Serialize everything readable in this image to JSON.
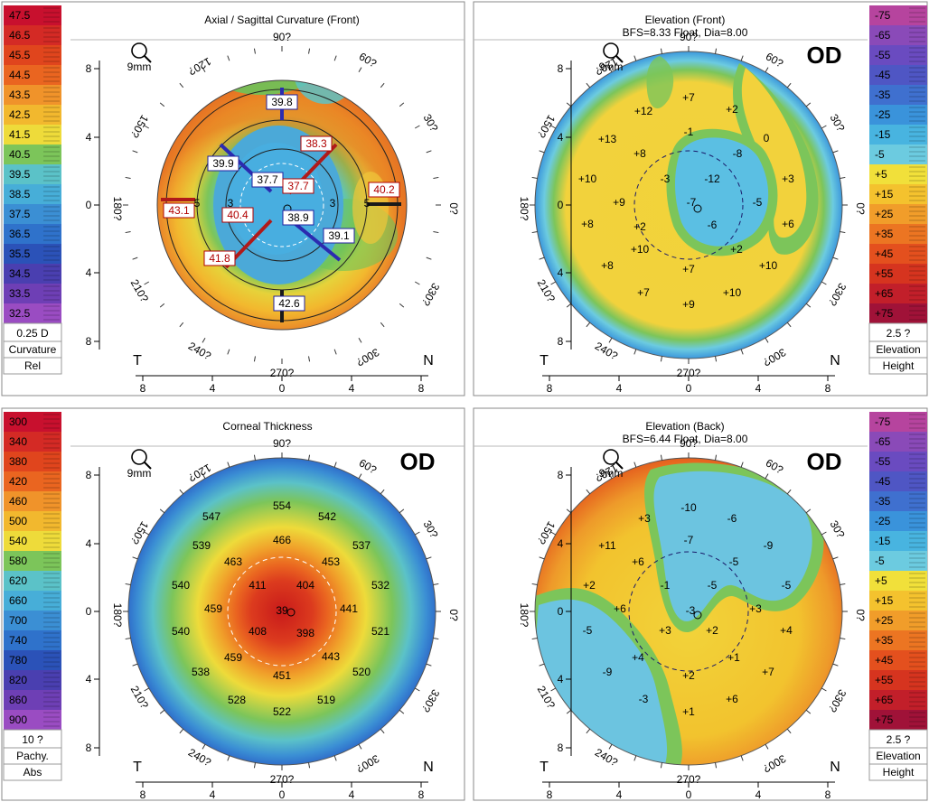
{
  "panels": [
    {
      "id": "axial",
      "title": "Axial / Sagittal Curvature (Front)",
      "subtitle": "",
      "od": "",
      "zoom_label": "9mm",
      "legend_side": "left",
      "legend": {
        "labels": [
          "47.5",
          "46.5",
          "45.5",
          "44.5",
          "43.5",
          "42.5",
          "41.5",
          "40.5",
          "39.5",
          "38.5",
          "37.5",
          "36.5",
          "35.5",
          "34.5",
          "33.5",
          "32.5"
        ],
        "colors": [
          "#c8102e",
          "#d42a25",
          "#e0451d",
          "#ea6520",
          "#f0932a",
          "#f2b82e",
          "#eedb3a",
          "#7cc55a",
          "#5bc2c8",
          "#47aed8",
          "#3b8fd4",
          "#2f72cb",
          "#2b52b8",
          "#4a3fb0",
          "#6e3fb5",
          "#9a4cc2"
        ],
        "step": "0.25 D",
        "kind": "Curvature",
        "mode": "Rel"
      },
      "degrees": {
        "d90": "90?",
        "d120": "120?",
        "d60": "60?",
        "d150": "150?",
        "d30": "30?",
        "d180": "180?",
        "d0": "0?",
        "d210": "210?",
        "d330": "330?",
        "d240": "240?",
        "d300": "300?",
        "d270": "270?"
      },
      "side_left": "T",
      "side_right": "N",
      "y_ticks": [
        "8",
        "4",
        "0",
        "4",
        "8"
      ],
      "x_ticks": [
        "8",
        "4",
        "0",
        "4",
        "8"
      ],
      "values": [
        {
          "t": "39.8",
          "c": "blue"
        },
        {
          "t": "38.3",
          "c": "red"
        },
        {
          "t": "39.9",
          "c": "blue"
        },
        {
          "t": "37.7",
          "c": "blue"
        },
        {
          "t": "37.7",
          "c": "red"
        },
        {
          "t": "40.2",
          "c": "red"
        },
        {
          "t": "43.1",
          "c": "red"
        },
        {
          "t": "40.4",
          "c": "red"
        },
        {
          "t": "38.9",
          "c": "blue"
        },
        {
          "t": "39.1",
          "c": "blue"
        },
        {
          "t": "41.8",
          "c": "red"
        },
        {
          "t": "42.6",
          "c": "blue"
        },
        {
          "t": "3",
          "c": "plain"
        },
        {
          "t": "3",
          "c": "plain"
        },
        {
          "t": "5",
          "c": "plain"
        },
        {
          "t": "5",
          "c": "plain"
        }
      ]
    },
    {
      "id": "elev_front",
      "title": "Elevation (Front)",
      "subtitle": "BFS=8.33 Float, Dia=8.00",
      "od": "OD",
      "zoom_label": "9mm",
      "legend_side": "right",
      "legend": {
        "labels": [
          "-75",
          "-65",
          "-55",
          "-45",
          "-35",
          "-25",
          "-15",
          "-5",
          "+5",
          "+15",
          "+25",
          "+35",
          "+45",
          "+55",
          "+65",
          "+75"
        ],
        "colors": [
          "#b6449e",
          "#8a4ab8",
          "#6a4bc0",
          "#4f56c4",
          "#3f70cf",
          "#3a93db",
          "#48b4e0",
          "#6ccbe0",
          "#f1e03a",
          "#f4c22e",
          "#f19d2a",
          "#ec7522",
          "#e4501e",
          "#d6341f",
          "#c21f2a",
          "#a01238"
        ],
        "step": "2.5 ?",
        "kind": "Elevation",
        "mode": "Height"
      },
      "degrees": {
        "d90": "90?",
        "d120": "120?",
        "d60": "60?",
        "d150": "150?",
        "d30": "30?",
        "d180": "180?",
        "d0": "0?",
        "d210": "210?",
        "d330": "330?",
        "d240": "240?",
        "d300": "300?",
        "d270": "270?"
      },
      "side_left": "T",
      "side_right": "N",
      "y_ticks": [
        "8",
        "4",
        "0",
        "4",
        "8"
      ],
      "x_ticks": [
        "8",
        "4",
        "0",
        "4",
        "8"
      ],
      "values": [
        {
          "t": "+7"
        },
        {
          "t": "+12"
        },
        {
          "t": "+2"
        },
        {
          "t": "+13"
        },
        {
          "t": "-1"
        },
        {
          "t": "0"
        },
        {
          "t": "+8"
        },
        {
          "t": "-8"
        },
        {
          "t": "+10"
        },
        {
          "t": "-3"
        },
        {
          "t": "-12"
        },
        {
          "t": "+3"
        },
        {
          "t": "+9"
        },
        {
          "t": "-7"
        },
        {
          "t": "-5"
        },
        {
          "t": "+8"
        },
        {
          "t": "+2"
        },
        {
          "t": "-6"
        },
        {
          "t": "+6"
        },
        {
          "t": "+10"
        },
        {
          "t": "+2"
        },
        {
          "t": "+8"
        },
        {
          "t": "+7"
        },
        {
          "t": "+10"
        },
        {
          "t": "+7"
        },
        {
          "t": "+10"
        },
        {
          "t": "+9"
        }
      ]
    },
    {
      "id": "thickness",
      "title": "Corneal Thickness",
      "subtitle": "",
      "od": "OD",
      "zoom_label": "9mm",
      "legend_side": "left",
      "legend": {
        "labels": [
          "300",
          "340",
          "380",
          "420",
          "460",
          "500",
          "540",
          "580",
          "620",
          "660",
          "700",
          "740",
          "780",
          "820",
          "860",
          "900"
        ],
        "colors": [
          "#c8102e",
          "#d42a25",
          "#e0451d",
          "#ea6520",
          "#f0932a",
          "#f2b82e",
          "#eedb3a",
          "#7cc55a",
          "#5bc2c8",
          "#47aed8",
          "#3b8fd4",
          "#2f72cb",
          "#2b52b8",
          "#4a3fb0",
          "#6e3fb5",
          "#9a4cc2"
        ],
        "step": "10 ?",
        "kind": "Pachy.",
        "mode": "Abs"
      },
      "degrees": {
        "d90": "90?",
        "d120": "120?",
        "d60": "60?",
        "d150": "150?",
        "d30": "30?",
        "d180": "180?",
        "d0": "0?",
        "d210": "210?",
        "d330": "330?",
        "d240": "240?",
        "d300": "300?",
        "d270": "270?"
      },
      "side_left": "T",
      "side_right": "N",
      "y_ticks": [
        "8",
        "4",
        "0",
        "4",
        "8"
      ],
      "x_ticks": [
        "8",
        "4",
        "0",
        "4",
        "8"
      ],
      "values": [
        {
          "t": "554"
        },
        {
          "t": "547"
        },
        {
          "t": "542"
        },
        {
          "t": "539"
        },
        {
          "t": "466"
        },
        {
          "t": "537"
        },
        {
          "t": "463"
        },
        {
          "t": "453"
        },
        {
          "t": "540"
        },
        {
          "t": "411"
        },
        {
          "t": "404"
        },
        {
          "t": "532"
        },
        {
          "t": "459"
        },
        {
          "t": "441"
        },
        {
          "t": "540"
        },
        {
          "t": "408"
        },
        {
          "t": "398"
        },
        {
          "t": "521"
        },
        {
          "t": "459"
        },
        {
          "t": "443"
        },
        {
          "t": "538"
        },
        {
          "t": "451"
        },
        {
          "t": "520"
        },
        {
          "t": "528"
        },
        {
          "t": "519"
        },
        {
          "t": "522"
        },
        {
          "t": "39"
        }
      ]
    },
    {
      "id": "elev_back",
      "title": "Elevation (Back)",
      "subtitle": "BFS=6.44 Float, Dia=8.00",
      "od": "OD",
      "zoom_label": "9mm",
      "legend_side": "right",
      "legend": {
        "labels": [
          "-75",
          "-65",
          "-55",
          "-45",
          "-35",
          "-25",
          "-15",
          "-5",
          "+5",
          "+15",
          "+25",
          "+35",
          "+45",
          "+55",
          "+65",
          "+75"
        ],
        "colors": [
          "#b6449e",
          "#8a4ab8",
          "#6a4bc0",
          "#4f56c4",
          "#3f70cf",
          "#3a93db",
          "#48b4e0",
          "#6ccbe0",
          "#f1e03a",
          "#f4c22e",
          "#f19d2a",
          "#ec7522",
          "#e4501e",
          "#d6341f",
          "#c21f2a",
          "#a01238"
        ],
        "step": "2.5 ?",
        "kind": "Elevation",
        "mode": "Height"
      },
      "degrees": {
        "d90": "90?",
        "d120": "120?",
        "d60": "60?",
        "d150": "150?",
        "d30": "30?",
        "d180": "180?",
        "d0": "0?",
        "d210": "210?",
        "d330": "330?",
        "d240": "240?",
        "d300": "300?",
        "d270": "270?"
      },
      "side_left": "T",
      "side_right": "N",
      "y_ticks": [
        "8",
        "4",
        "0",
        "4",
        "8"
      ],
      "x_ticks": [
        "8",
        "4",
        "0",
        "4",
        "8"
      ],
      "values": [
        {
          "t": "-10"
        },
        {
          "t": "+3"
        },
        {
          "t": "-6"
        },
        {
          "t": "+11"
        },
        {
          "t": "-7"
        },
        {
          "t": "-9"
        },
        {
          "t": "+6"
        },
        {
          "t": "-5"
        },
        {
          "t": "-1"
        },
        {
          "t": "-5"
        },
        {
          "t": "-5"
        },
        {
          "t": "+2"
        },
        {
          "t": "+6"
        },
        {
          "t": "-3"
        },
        {
          "t": "+3"
        },
        {
          "t": "-5"
        },
        {
          "t": "+3"
        },
        {
          "t": "+2"
        },
        {
          "t": "+4"
        },
        {
          "t": "+4"
        },
        {
          "t": "+1"
        },
        {
          "t": "-9"
        },
        {
          "t": "+2"
        },
        {
          "t": "+7"
        },
        {
          "t": "-3"
        },
        {
          "t": "+6"
        },
        {
          "t": "+1"
        }
      ]
    }
  ]
}
